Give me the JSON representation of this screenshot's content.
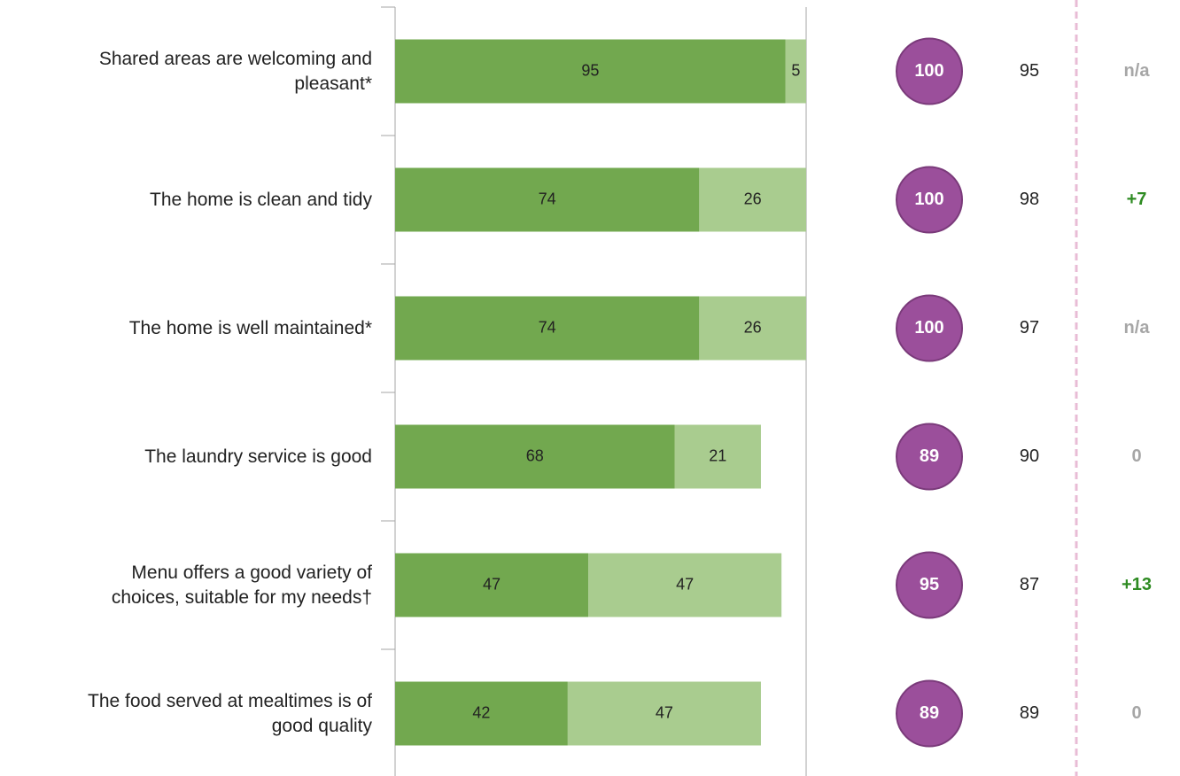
{
  "chart_data": {
    "type": "bar",
    "orientation": "horizontal",
    "stacked": true,
    "categories": [
      "Shared areas are welcoming and\npleasant*",
      "The home is clean and tidy",
      "The home is well maintained*",
      "The laundry service is good",
      "Menu offers a good variety of\nchoices, suitable for my needs†",
      "The food served at mealtimes is of\ngood quality"
    ],
    "series": [
      {
        "color": "#72a84f",
        "values": [
          95,
          74,
          74,
          68,
          47,
          42
        ]
      },
      {
        "color": "#a9cc8f",
        "values": [
          5,
          26,
          26,
          21,
          47,
          47
        ]
      }
    ],
    "xlim": [
      0,
      100
    ],
    "totals": {
      "color": "#9b4f9b",
      "values": [
        100,
        100,
        100,
        89,
        95,
        89
      ]
    },
    "comparison": {
      "values": [
        95,
        98,
        97,
        90,
        87,
        89
      ]
    },
    "changes": {
      "labels": [
        "n/a",
        "+7",
        "n/a",
        "0",
        "+13",
        "0"
      ],
      "colors": [
        "#a6a6a6",
        "#2e8b22",
        "#a6a6a6",
        "#a6a6a6",
        "#2e8b22",
        "#a6a6a6"
      ]
    }
  }
}
